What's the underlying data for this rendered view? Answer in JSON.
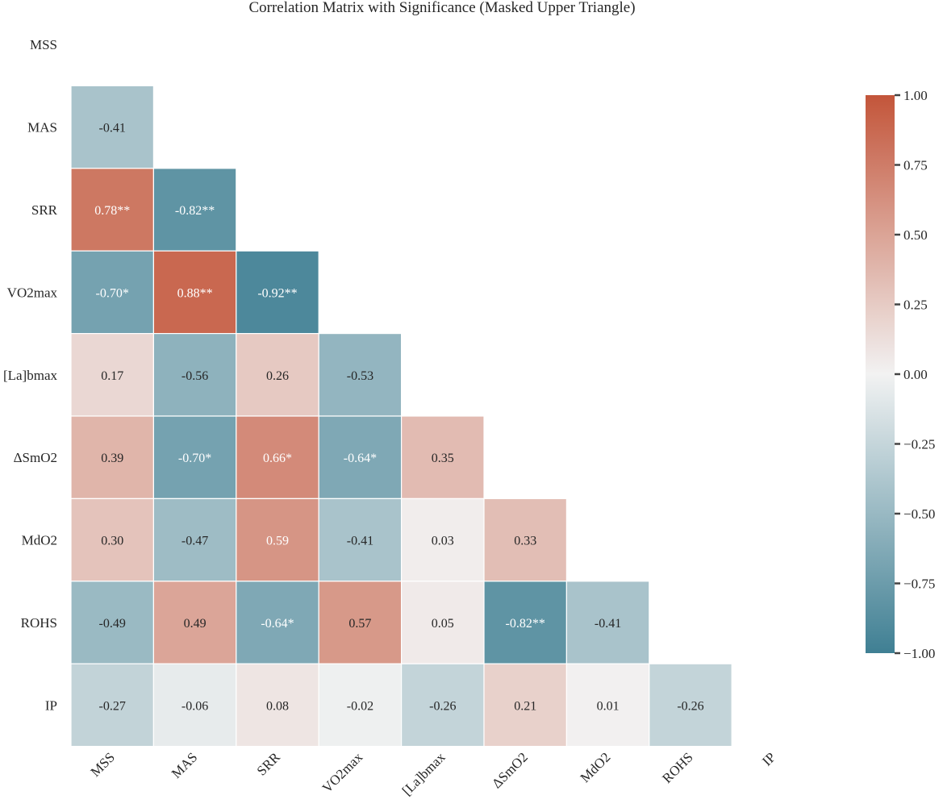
{
  "chart_data": {
    "type": "heatmap",
    "title": "Correlation Matrix with Significance (Masked Upper Triangle)",
    "xlabel": "",
    "ylabel": "",
    "variables": [
      "MSS",
      "MAS",
      "SRR",
      "VO2max",
      "[La]bmax",
      "ΔSmO2",
      "MdO2",
      "ROHS",
      "IP"
    ],
    "mask": "upper-triangle-including-diagonal",
    "values": [
      [
        null,
        null,
        null,
        null,
        null,
        null,
        null,
        null,
        null
      ],
      [
        -0.41,
        null,
        null,
        null,
        null,
        null,
        null,
        null,
        null
      ],
      [
        0.78,
        -0.82,
        null,
        null,
        null,
        null,
        null,
        null,
        null
      ],
      [
        -0.7,
        0.88,
        -0.92,
        null,
        null,
        null,
        null,
        null,
        null
      ],
      [
        0.17,
        -0.56,
        0.26,
        -0.53,
        null,
        null,
        null,
        null,
        null
      ],
      [
        0.39,
        -0.7,
        0.66,
        -0.64,
        0.35,
        null,
        null,
        null,
        null
      ],
      [
        0.3,
        -0.47,
        0.59,
        -0.41,
        0.03,
        0.33,
        null,
        null,
        null
      ],
      [
        -0.49,
        0.49,
        -0.64,
        0.57,
        0.05,
        -0.82,
        -0.41,
        null,
        null
      ],
      [
        -0.27,
        -0.06,
        0.08,
        -0.02,
        -0.26,
        0.21,
        0.01,
        -0.26,
        null
      ]
    ],
    "annotations": [
      [
        null,
        null,
        null,
        null,
        null,
        null,
        null,
        null,
        null
      ],
      [
        "-0.41",
        null,
        null,
        null,
        null,
        null,
        null,
        null,
        null
      ],
      [
        "0.78**",
        "-0.82**",
        null,
        null,
        null,
        null,
        null,
        null,
        null
      ],
      [
        "-0.70*",
        "0.88**",
        "-0.92**",
        null,
        null,
        null,
        null,
        null,
        null
      ],
      [
        "0.17",
        "-0.56",
        "0.26",
        "-0.53",
        null,
        null,
        null,
        null,
        null
      ],
      [
        "0.39",
        "-0.70*",
        "0.66*",
        "-0.64*",
        "0.35",
        null,
        null,
        null,
        null
      ],
      [
        "0.30",
        "-0.47",
        "0.59",
        "-0.41",
        "0.03",
        "0.33",
        null,
        null,
        null
      ],
      [
        "-0.49",
        "0.49",
        "-0.64*",
        "0.57",
        "0.05",
        "-0.82**",
        "-0.41",
        null,
        null
      ],
      [
        "-0.27",
        "-0.06",
        "0.08",
        "-0.02",
        "-0.26",
        "0.21",
        "0.01",
        "-0.26",
        null
      ]
    ],
    "colorbar": {
      "vmin": -1.0,
      "vmax": 1.0,
      "ticks": [
        1.0,
        0.75,
        0.5,
        0.25,
        0.0,
        -0.25,
        -0.5,
        -0.75,
        -1.0
      ],
      "tick_labels": [
        "1.00",
        "0.75",
        "0.50",
        "0.25",
        "0.00",
        "−0.25",
        "−0.50",
        "−0.75",
        "−1.00"
      ],
      "placement": "right"
    },
    "colors": {
      "negative": "#3f7f93",
      "center": "#f2f2f2",
      "positive": "#c3553a",
      "text_dark": "#262626",
      "text_light": "#ffffff"
    },
    "grid": false
  }
}
